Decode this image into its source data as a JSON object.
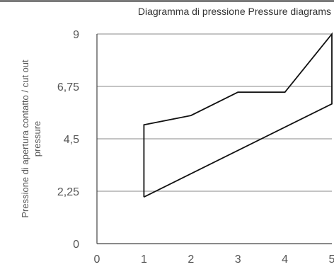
{
  "chart_data": {
    "type": "line",
    "title": "Diagramma di pressione  Pressure diagrams",
    "xlabel": "",
    "ylabel_lines": [
      "Pressione di apertura contatto / cut out",
      "pressure"
    ],
    "x_ticks": [
      "0",
      "1",
      "2",
      "3",
      "4",
      "5"
    ],
    "y_ticks": [
      "0",
      "2,25",
      "4,5",
      "6,75",
      "9"
    ],
    "xlim": [
      0,
      5
    ],
    "ylim": [
      0,
      9
    ],
    "y_tick_values": [
      0,
      2.25,
      4.5,
      6.75,
      9
    ],
    "x_tick_values": [
      0,
      1,
      2,
      3,
      4,
      5
    ],
    "grid": "horizontal",
    "series": [
      {
        "x": [
          1,
          1,
          2,
          3,
          4,
          5,
          5,
          1
        ],
        "y": [
          2,
          5.1,
          5.5,
          6.5,
          6.5,
          9,
          6,
          2
        ]
      }
    ]
  }
}
